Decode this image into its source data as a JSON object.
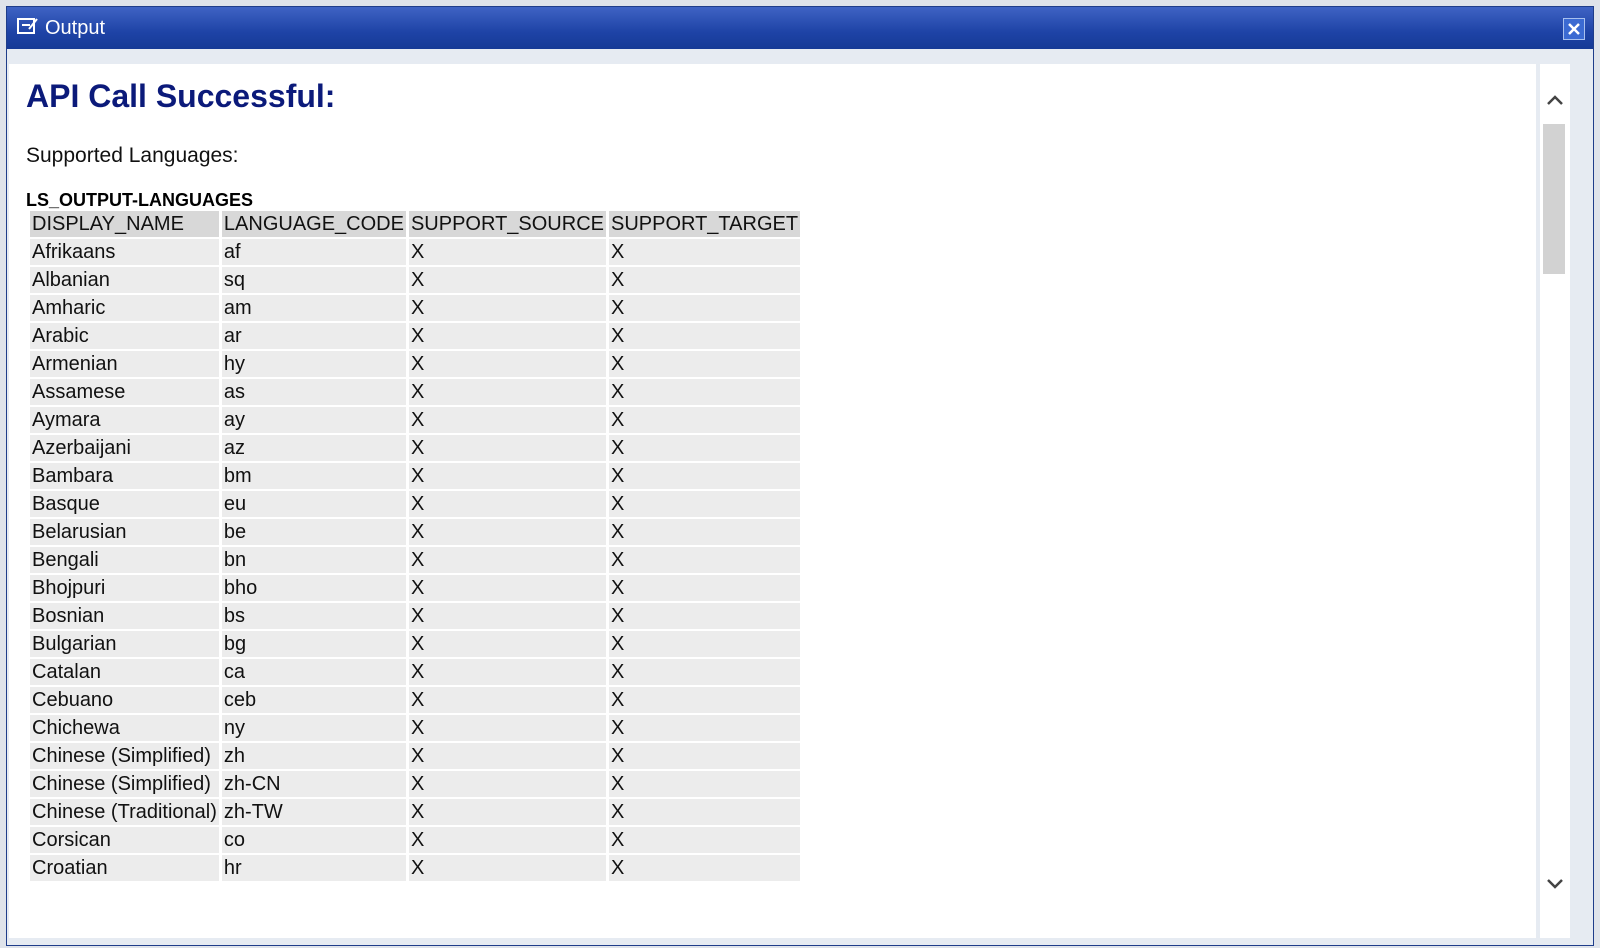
{
  "window": {
    "title": "Output"
  },
  "heading": "API Call Successful:",
  "subtitle": "Supported Languages:",
  "table": {
    "caption": "LS_OUTPUT-LANGUAGES",
    "headers": [
      "DISPLAY_NAME",
      "LANGUAGE_CODE",
      "SUPPORT_SOURCE",
      "SUPPORT_TARGET"
    ],
    "rows": [
      [
        "Afrikaans",
        "af",
        "X",
        "X"
      ],
      [
        "Albanian",
        "sq",
        "X",
        "X"
      ],
      [
        "Amharic",
        "am",
        "X",
        "X"
      ],
      [
        "Arabic",
        "ar",
        "X",
        "X"
      ],
      [
        "Armenian",
        "hy",
        "X",
        "X"
      ],
      [
        "Assamese",
        "as",
        "X",
        "X"
      ],
      [
        "Aymara",
        "ay",
        "X",
        "X"
      ],
      [
        "Azerbaijani",
        "az",
        "X",
        "X"
      ],
      [
        "Bambara",
        "bm",
        "X",
        "X"
      ],
      [
        "Basque",
        "eu",
        "X",
        "X"
      ],
      [
        "Belarusian",
        "be",
        "X",
        "X"
      ],
      [
        "Bengali",
        "bn",
        "X",
        "X"
      ],
      [
        "Bhojpuri",
        "bho",
        "X",
        "X"
      ],
      [
        "Bosnian",
        "bs",
        "X",
        "X"
      ],
      [
        "Bulgarian",
        "bg",
        "X",
        "X"
      ],
      [
        "Catalan",
        "ca",
        "X",
        "X"
      ],
      [
        "Cebuano",
        "ceb",
        "X",
        "X"
      ],
      [
        "Chichewa",
        "ny",
        "X",
        "X"
      ],
      [
        "Chinese (Simplified)",
        "zh",
        "X",
        "X"
      ],
      [
        "Chinese (Simplified)",
        "zh-CN",
        "X",
        "X"
      ],
      [
        "Chinese (Traditional)",
        "zh-TW",
        "X",
        "X"
      ],
      [
        "Corsican",
        "co",
        "X",
        "X"
      ],
      [
        "Croatian",
        "hr",
        "X",
        "X"
      ]
    ]
  }
}
